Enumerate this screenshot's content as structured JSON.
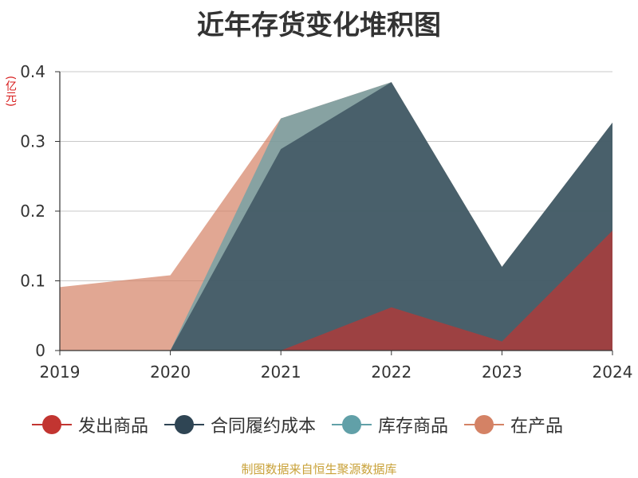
{
  "chart_data": {
    "type": "area",
    "title": "近年存货变化堆积图",
    "unit_label": "(亿元)",
    "categories": [
      "2019",
      "2020",
      "2021",
      "2022",
      "2023",
      "2024"
    ],
    "y_ticks": [
      "0",
      "0.1",
      "0.2",
      "0.3",
      "0.4"
    ],
    "ylim": [
      0,
      0.4
    ],
    "grid": true,
    "legend_position": "bottom",
    "series": [
      {
        "name": "发出商品",
        "color": "#c23531",
        "values": [
          0,
          0,
          0,
          0.062,
          0.013,
          0.172
        ]
      },
      {
        "name": "合同履约成本",
        "color": "#2f4554",
        "values": [
          0,
          0,
          0.289,
          0.385,
          0.12,
          0.327
        ]
      },
      {
        "name": "库存商品",
        "color": "#61a0a8",
        "values": [
          0,
          0,
          0.333,
          0.385,
          0.12,
          0.327
        ]
      },
      {
        "name": "在产品",
        "color": "#d48265",
        "values": [
          0.091,
          0.108,
          0.333,
          0.385,
          0.12,
          0.327
        ]
      }
    ]
  },
  "source": "制图数据来自恒生聚源数据库"
}
